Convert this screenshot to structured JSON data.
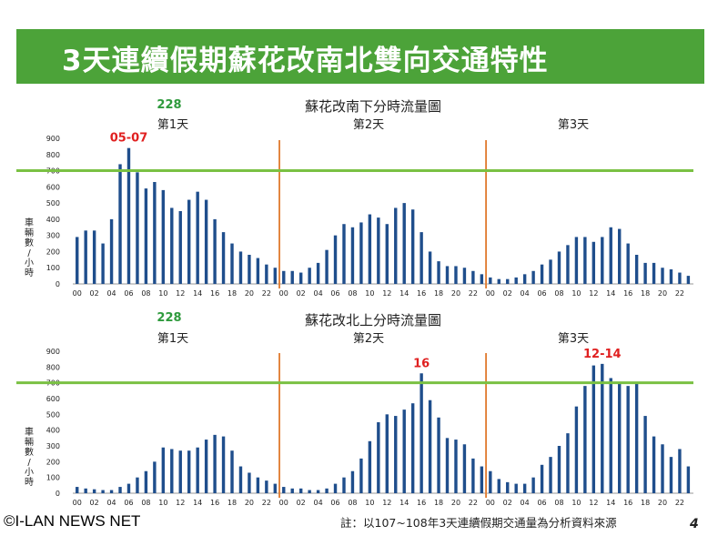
{
  "page": {
    "title": "3天連續假期蘇花改南北雙向交通特性",
    "watermark": "©I-LAN NEWS NET",
    "footnote": "註：以107~108年3天連續假期交通量為分析資料來源",
    "page_number": "4"
  },
  "colors": {
    "title_bg": "#4ca339",
    "bar": "#1f4e8c",
    "threshold": "#7ac143",
    "divider": "#e07a2e",
    "peak_label": "#e02020",
    "holiday_label": "#2e9a3c"
  },
  "chart_data": [
    {
      "type": "bar",
      "title": "蘇花改南下分時流量圖",
      "ylabel": "車輛數/小時",
      "ylabel_chars": [
        "車",
        "輛",
        "數",
        "/",
        "小",
        "時"
      ],
      "ylim": [
        0,
        900
      ],
      "yticks": [
        "0",
        "100",
        "200",
        "300",
        "400",
        "500",
        "600",
        "700",
        "800",
        "900"
      ],
      "threshold": 700,
      "day_labels": [
        "第1天",
        "第2天",
        "第3天"
      ],
      "holiday_label": "228",
      "x_tick_labels": [
        "00",
        "02",
        "04",
        "06",
        "08",
        "10",
        "12",
        "14",
        "16",
        "18",
        "20",
        "22"
      ],
      "peak_annotation": {
        "text": "05-07",
        "day": 1,
        "hour": 6
      },
      "values": [
        [
          290,
          330,
          330,
          250,
          400,
          740,
          840,
          690,
          590,
          630,
          580,
          470,
          450,
          520,
          570,
          520,
          400,
          320,
          250,
          200,
          180,
          160,
          120,
          100
        ],
        [
          80,
          80,
          70,
          100,
          130,
          210,
          300,
          370,
          350,
          380,
          430,
          410,
          370,
          470,
          500,
          460,
          320,
          200,
          140,
          110,
          110,
          100,
          80,
          60
        ],
        [
          40,
          30,
          30,
          40,
          60,
          80,
          120,
          150,
          200,
          240,
          290,
          290,
          260,
          290,
          350,
          340,
          250,
          180,
          130,
          130,
          100,
          90,
          70,
          50
        ]
      ]
    },
    {
      "type": "bar",
      "title": "蘇花改北上分時流量圖",
      "ylabel": "車輛數/小時",
      "ylabel_chars": [
        "車",
        "輛",
        "數",
        "/",
        "小",
        "時"
      ],
      "ylim": [
        0,
        900
      ],
      "yticks": [
        "0",
        "100",
        "200",
        "300",
        "400",
        "500",
        "600",
        "700",
        "800",
        "900"
      ],
      "threshold": 700,
      "day_labels": [
        "第1天",
        "第2天",
        "第3天"
      ],
      "holiday_label": "228",
      "x_tick_labels": [
        "00",
        "02",
        "04",
        "06",
        "08",
        "10",
        "12",
        "14",
        "16",
        "18",
        "20",
        "22"
      ],
      "peak_annotations": [
        {
          "text": "16",
          "day": 2,
          "hour": 16
        },
        {
          "text": "12-14",
          "day": 3,
          "hour": 13
        }
      ],
      "values": [
        [
          40,
          30,
          25,
          20,
          20,
          40,
          60,
          100,
          140,
          200,
          290,
          280,
          270,
          270,
          290,
          340,
          370,
          360,
          270,
          170,
          130,
          100,
          80,
          60
        ],
        [
          40,
          30,
          30,
          20,
          20,
          30,
          60,
          100,
          140,
          220,
          330,
          450,
          500,
          490,
          530,
          570,
          760,
          590,
          480,
          350,
          340,
          310,
          220,
          170
        ],
        [
          140,
          90,
          70,
          60,
          60,
          100,
          180,
          230,
          300,
          380,
          550,
          680,
          810,
          820,
          730,
          700,
          680,
          700,
          490,
          360,
          310,
          230,
          280,
          170
        ]
      ]
    }
  ]
}
